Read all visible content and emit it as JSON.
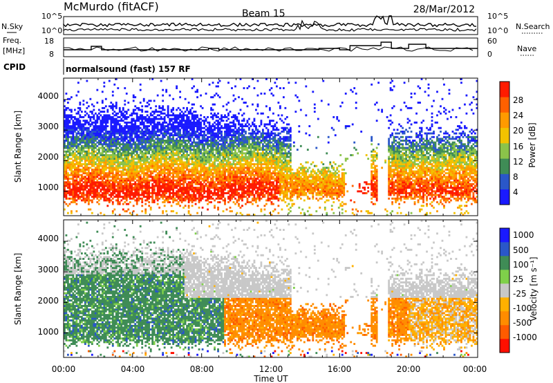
{
  "header": {
    "station": "McMurdo (fitACF)",
    "beam": "Beam 15",
    "date": "28/Mar/2012"
  },
  "noise_panel": {
    "left_label": "N.Sky",
    "right_label": "N.Search",
    "ticks": [
      "10^5",
      "10^0"
    ]
  },
  "freq_panel": {
    "left_label_1": "Freq.",
    "left_label_2": "[MHz]",
    "left_ticks": [
      "18",
      "8"
    ],
    "right_label": "Nave",
    "right_ticks": [
      "60",
      "0"
    ]
  },
  "cpid_panel": {
    "label": "CPID",
    "program": "normalsound (fast) 157 RF"
  },
  "colors": {
    "power_scale": [
      "#1a1aff",
      "#2a57c9",
      "#3f8c56",
      "#8bc34a",
      "#f2c200",
      "#ff9a00",
      "#ff6000",
      "#ff1b00"
    ],
    "velocity_scale": [
      "#ff0f00",
      "#ff5b00",
      "#ff8c00",
      "#ffb000",
      "#c8c8c8",
      "#7fd04a",
      "#3f8c56",
      "#2a57c9",
      "#1a1aff"
    ],
    "ground_scatter": "#c8c8c8"
  },
  "chart_data": [
    {
      "type": "heatmap",
      "name": "power",
      "ylabel": "Slant Range [km]",
      "xlabel": "",
      "ylim": [
        200,
        4700
      ],
      "xlim": [
        0,
        24
      ],
      "yticks": [
        "1000",
        "2000",
        "3000",
        "4000"
      ],
      "colorbar": {
        "label": "Power [dB]",
        "ticks": [
          "28",
          "24",
          "20",
          "16",
          "12",
          "8",
          "4"
        ]
      }
    },
    {
      "type": "heatmap",
      "name": "velocity",
      "ylabel": "Slant Range [km]",
      "xlabel": "Time UT",
      "ylim": [
        200,
        4700
      ],
      "xlim": [
        0,
        24
      ],
      "yticks": [
        "1000",
        "2000",
        "3000",
        "4000"
      ],
      "xticks": [
        "00:00",
        "04:00",
        "08:00",
        "12:00",
        "16:00",
        "20:00",
        "00:00"
      ],
      "colorbar": {
        "label": "Velocity [m s⁻¹]",
        "ticks": [
          "1000",
          "500",
          "100",
          "25",
          "-25",
          "-100",
          "-500",
          "-1000"
        ]
      }
    }
  ]
}
